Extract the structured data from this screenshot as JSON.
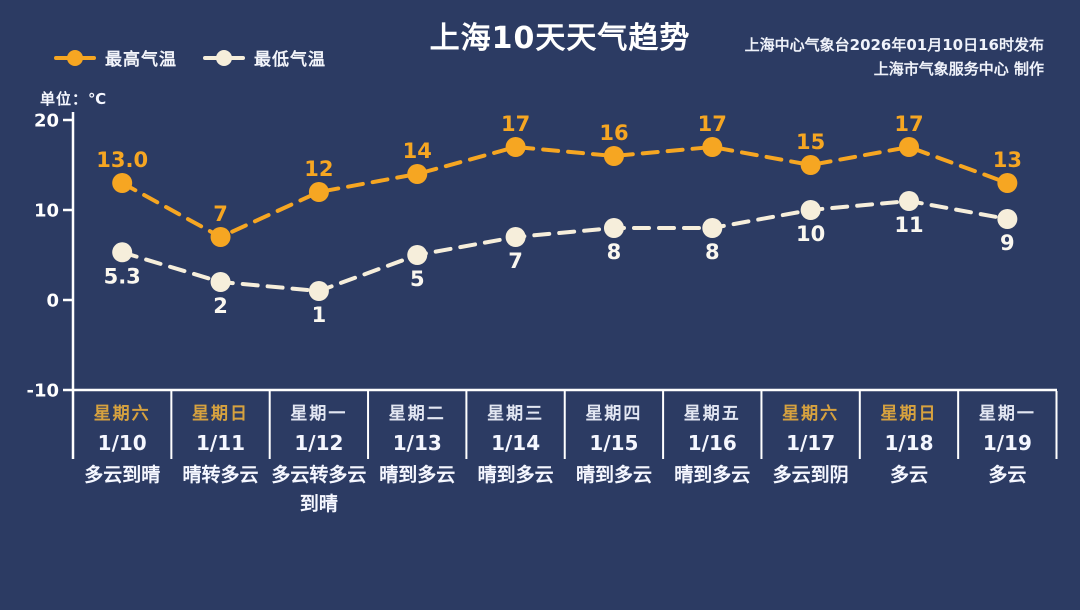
{
  "header": {
    "title": "上海10天天气趋势",
    "issued_line1": "上海中心气象台2026年01月10日16时发布",
    "issued_line2": "上海市气象服务中心 制作",
    "unit_label": "单位：℃"
  },
  "colors": {
    "background": "#2C3B63",
    "axis": "#FFFFFF",
    "high_series": "#F6A622",
    "low_series": "#F6EEDB",
    "high_value_label": "#F6A622",
    "low_value_label": "#FAF7EF",
    "weekend_weekday_text": "#D7A23F",
    "weekday_text": "#E2E6F2",
    "date_text": "#F5F7FF",
    "weather_text": "#F5F7FF"
  },
  "chart_data": {
    "type": "line",
    "title": "上海10天天气趋势",
    "ylabel": "单位：℃",
    "ylim": [
      -10,
      20
    ],
    "yticks": [
      {
        "value": 20,
        "label": "20"
      },
      {
        "value": 10,
        "label": "10"
      },
      {
        "value": 0,
        "label": "0"
      },
      {
        "value": -10,
        "label": "-10"
      }
    ],
    "grid": false,
    "legend_position": "top-left",
    "categories": [
      {
        "weekday": "星期六",
        "date": "1/10",
        "weather": [
          "多云到晴"
        ],
        "weekend": true
      },
      {
        "weekday": "星期日",
        "date": "1/11",
        "weather": [
          "晴转多云"
        ],
        "weekend": true
      },
      {
        "weekday": "星期一",
        "date": "1/12",
        "weather": [
          "多云转多云",
          "到晴"
        ],
        "weekend": false
      },
      {
        "weekday": "星期二",
        "date": "1/13",
        "weather": [
          "晴到多云"
        ],
        "weekend": false
      },
      {
        "weekday": "星期三",
        "date": "1/14",
        "weather": [
          "晴到多云"
        ],
        "weekend": false
      },
      {
        "weekday": "星期四",
        "date": "1/15",
        "weather": [
          "晴到多云"
        ],
        "weekend": false
      },
      {
        "weekday": "星期五",
        "date": "1/16",
        "weather": [
          "晴到多云"
        ],
        "weekend": false
      },
      {
        "weekday": "星期六",
        "date": "1/17",
        "weather": [
          "多云到阴"
        ],
        "weekend": true
      },
      {
        "weekday": "星期日",
        "date": "1/18",
        "weather": [
          "多云"
        ],
        "weekend": true
      },
      {
        "weekday": "星期一",
        "date": "1/19",
        "weather": [
          "多云"
        ],
        "weekend": false
      }
    ],
    "series": [
      {
        "name": "最高气温",
        "key": "high",
        "color": "#F6A622",
        "values": [
          13.0,
          7,
          12,
          14,
          17,
          16,
          17,
          15,
          17,
          13
        ],
        "labels": [
          "13.0",
          "7",
          "12",
          "14",
          "17",
          "16",
          "17",
          "15",
          "17",
          "13"
        ],
        "label_position": "above"
      },
      {
        "name": "最低气温",
        "key": "low",
        "color": "#F6EEDB",
        "values": [
          5.3,
          2,
          1,
          5,
          7,
          8,
          8,
          10,
          11,
          9
        ],
        "labels": [
          "5.3",
          "2",
          "1",
          "5",
          "7",
          "8",
          "8",
          "10",
          "11",
          "9"
        ],
        "label_position": "below"
      }
    ]
  }
}
